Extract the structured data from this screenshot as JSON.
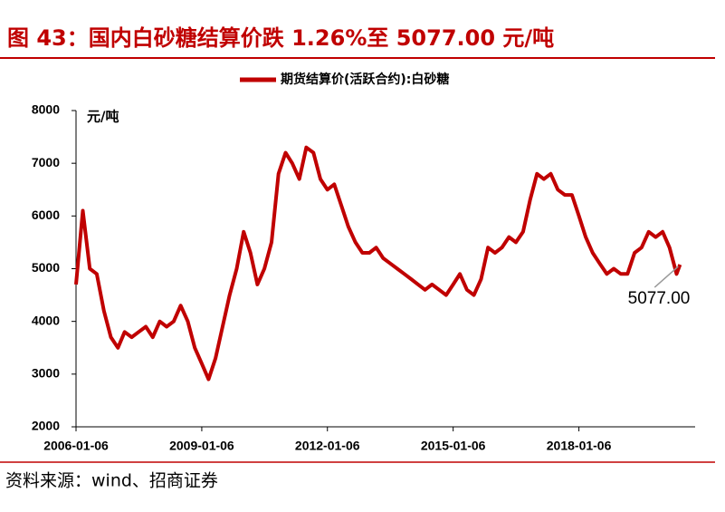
{
  "chart_data": {
    "type": "line",
    "title": "图 43：国内白砂糖结算价跌 1.26%至 5077.00 元/吨",
    "y_label": "元/吨",
    "source": "资料来源：wind、招商证券",
    "annotation": "5077.00",
    "x": [
      "2006-01-06",
      "2006-03-06",
      "2006-05-06",
      "2006-07-06",
      "2006-09-06",
      "2006-11-06",
      "2007-01-06",
      "2007-03-06",
      "2007-05-06",
      "2007-07-06",
      "2007-09-06",
      "2007-11-06",
      "2008-01-06",
      "2008-03-06",
      "2008-05-06",
      "2008-07-06",
      "2008-09-06",
      "2008-11-06",
      "2009-01-06",
      "2009-03-06",
      "2009-05-06",
      "2009-07-06",
      "2009-09-06",
      "2009-11-06",
      "2010-01-06",
      "2010-03-06",
      "2010-05-06",
      "2010-07-06",
      "2010-09-06",
      "2010-11-06",
      "2011-01-06",
      "2011-03-06",
      "2011-05-06",
      "2011-07-06",
      "2011-09-06",
      "2011-11-06",
      "2012-01-06",
      "2012-03-06",
      "2012-05-06",
      "2012-07-06",
      "2012-09-06",
      "2012-11-06",
      "2013-01-06",
      "2013-03-06",
      "2013-05-06",
      "2013-07-06",
      "2013-09-06",
      "2013-11-06",
      "2014-01-06",
      "2014-03-06",
      "2014-05-06",
      "2014-07-06",
      "2014-09-06",
      "2014-11-06",
      "2015-01-06",
      "2015-03-06",
      "2015-05-06",
      "2015-07-06",
      "2015-09-06",
      "2015-11-06",
      "2016-01-06",
      "2016-03-06",
      "2016-05-06",
      "2016-07-06",
      "2016-09-06",
      "2016-11-06",
      "2017-01-06",
      "2017-03-06",
      "2017-05-06",
      "2017-07-06",
      "2017-09-06",
      "2017-11-06",
      "2018-01-06",
      "2018-03-06",
      "2018-05-06",
      "2018-07-06",
      "2018-09-06",
      "2018-11-06",
      "2019-01-06",
      "2019-03-06",
      "2019-05-06",
      "2019-07-06",
      "2019-09-06",
      "2019-11-06",
      "2020-01-06",
      "2020-03-06",
      "2020-05-06",
      "2020-06-05"
    ],
    "series": [
      {
        "name": "期货结算价(活跃合约):白砂糖",
        "color": "#c00000",
        "values": [
          4700,
          6100,
          5000,
          4900,
          4200,
          3700,
          3500,
          3800,
          3700,
          3800,
          3900,
          3700,
          4000,
          3900,
          4000,
          4300,
          4000,
          3500,
          3200,
          2900,
          3300,
          3900,
          4500,
          5000,
          5700,
          5300,
          4700,
          5000,
          5500,
          6800,
          7200,
          7000,
          6700,
          7300,
          7200,
          6700,
          6500,
          6600,
          6200,
          5800,
          5500,
          5300,
          5300,
          5400,
          5200,
          5100,
          5000,
          4900,
          4800,
          4700,
          4600,
          4700,
          4600,
          4500,
          4700,
          4900,
          4600,
          4500,
          4800,
          5400,
          5300,
          5400,
          5600,
          5500,
          5700,
          6300,
          6800,
          6700,
          6800,
          6500,
          6400,
          6400,
          6000,
          5600,
          5300,
          5100,
          4900,
          5000,
          4900,
          4900,
          5300,
          5400,
          5700,
          5600,
          5700,
          5400,
          4900,
          5077
        ]
      }
    ],
    "xlim": [
      "2006-01-06",
      "2020-10-15"
    ],
    "xticks": [
      "2006-01-06",
      "2009-01-06",
      "2012-01-06",
      "2015-01-06",
      "2018-01-06"
    ],
    "ylim": [
      2000,
      8000
    ],
    "yticks": [
      2000,
      3000,
      4000,
      5000,
      6000,
      7000,
      8000
    ]
  }
}
